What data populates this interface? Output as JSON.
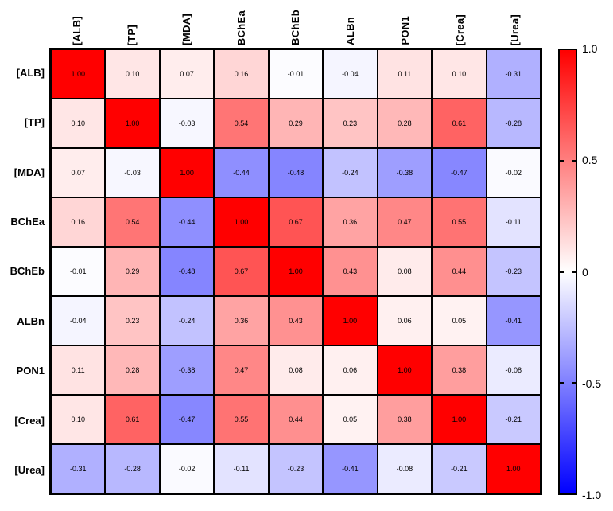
{
  "chart_data": {
    "type": "heatmap",
    "title": "",
    "categories": [
      "[ALB]",
      "[TP]",
      "[MDA]",
      "BChEa",
      "BChEb",
      "ALBn",
      "PON1",
      "[Crea]",
      "[Urea]"
    ],
    "matrix": [
      [
        1.0,
        0.1,
        0.07,
        0.16,
        -0.01,
        -0.04,
        0.11,
        0.1,
        -0.31
      ],
      [
        0.1,
        1.0,
        -0.03,
        0.54,
        0.29,
        0.23,
        0.28,
        0.61,
        -0.28
      ],
      [
        0.07,
        -0.03,
        1.0,
        -0.44,
        -0.48,
        -0.24,
        -0.38,
        -0.47,
        -0.02
      ],
      [
        0.16,
        0.54,
        -0.44,
        1.0,
        0.67,
        0.36,
        0.47,
        0.55,
        -0.11
      ],
      [
        -0.01,
        0.29,
        -0.48,
        0.67,
        1.0,
        0.43,
        0.08,
        0.44,
        -0.23
      ],
      [
        -0.04,
        0.23,
        -0.24,
        0.36,
        0.43,
        1.0,
        0.06,
        0.05,
        -0.41
      ],
      [
        0.11,
        0.28,
        -0.38,
        0.47,
        0.08,
        0.06,
        1.0,
        0.38,
        -0.08
      ],
      [
        0.1,
        0.61,
        -0.47,
        0.55,
        0.44,
        0.05,
        0.38,
        1.0,
        -0.21
      ],
      [
        -0.31,
        -0.28,
        -0.02,
        -0.11,
        -0.23,
        -0.41,
        -0.08,
        -0.21,
        1.0
      ]
    ],
    "value_decimals": 2,
    "colormap": {
      "max_color": "#ff0000",
      "mid_color": "#ffffff",
      "min_color": "#0000ff"
    },
    "colorbar": {
      "min": -1.0,
      "max": 1.0,
      "tick_labels": [
        "1.0",
        "0.5",
        "0",
        "-0.5",
        "-1.0"
      ],
      "tick_positions_pct": [
        0,
        25,
        50,
        75,
        100
      ],
      "legend_position": "right"
    },
    "grid": true
  }
}
